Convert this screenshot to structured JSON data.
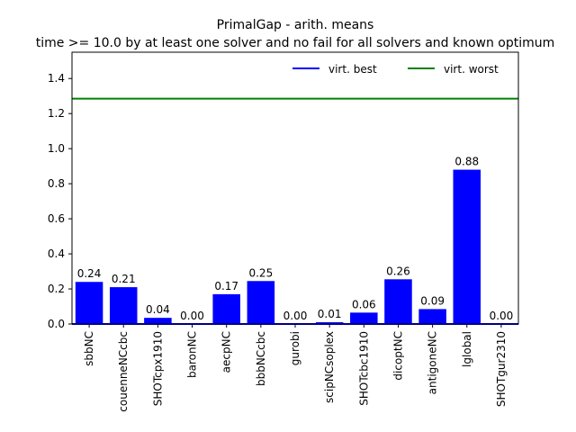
{
  "chart_data": {
    "type": "bar",
    "title_line1": "PrimalGap - arith. means",
    "title_line2": "time >= 10.0 by at least one solver and no fail for all solvers and known optimum",
    "xlabel": "",
    "ylabel": "",
    "ylim": [
      0,
      1.55
    ],
    "yticks": [
      "0.0",
      "0.2",
      "0.4",
      "0.6",
      "0.8",
      "1.0",
      "1.2",
      "1.4"
    ],
    "categories": [
      "sbbNC",
      "couenneNCcbc",
      "SHOTcpx1910",
      "baronNC",
      "aecpNC",
      "bbbNCcbc",
      "gurobi",
      "scipNCsoplex",
      "SHOTcbc1910",
      "dicoptNC",
      "antigoneNC",
      "lglobal",
      "SHOTgur2310"
    ],
    "values": [
      0.24,
      0.21,
      0.035,
      0.0,
      0.17,
      0.245,
      0.0,
      0.01,
      0.065,
      0.255,
      0.085,
      0.88,
      0.0
    ],
    "value_labels": [
      "0.24",
      "0.21",
      "0.04",
      "0.00",
      "0.17",
      "0.25",
      "0.00",
      "0.01",
      "0.06",
      "0.26",
      "0.09",
      "0.88",
      "0.00"
    ],
    "bar_color": "#0000ff",
    "lines": [
      {
        "name": "virt. best",
        "value": 0.0,
        "color": "#0000ff"
      },
      {
        "name": "virt. worst",
        "value": 1.285,
        "color": "#008000"
      }
    ],
    "legend": [
      "virt. best",
      "virt. worst"
    ],
    "legend_position": "top-right",
    "grid": false
  }
}
